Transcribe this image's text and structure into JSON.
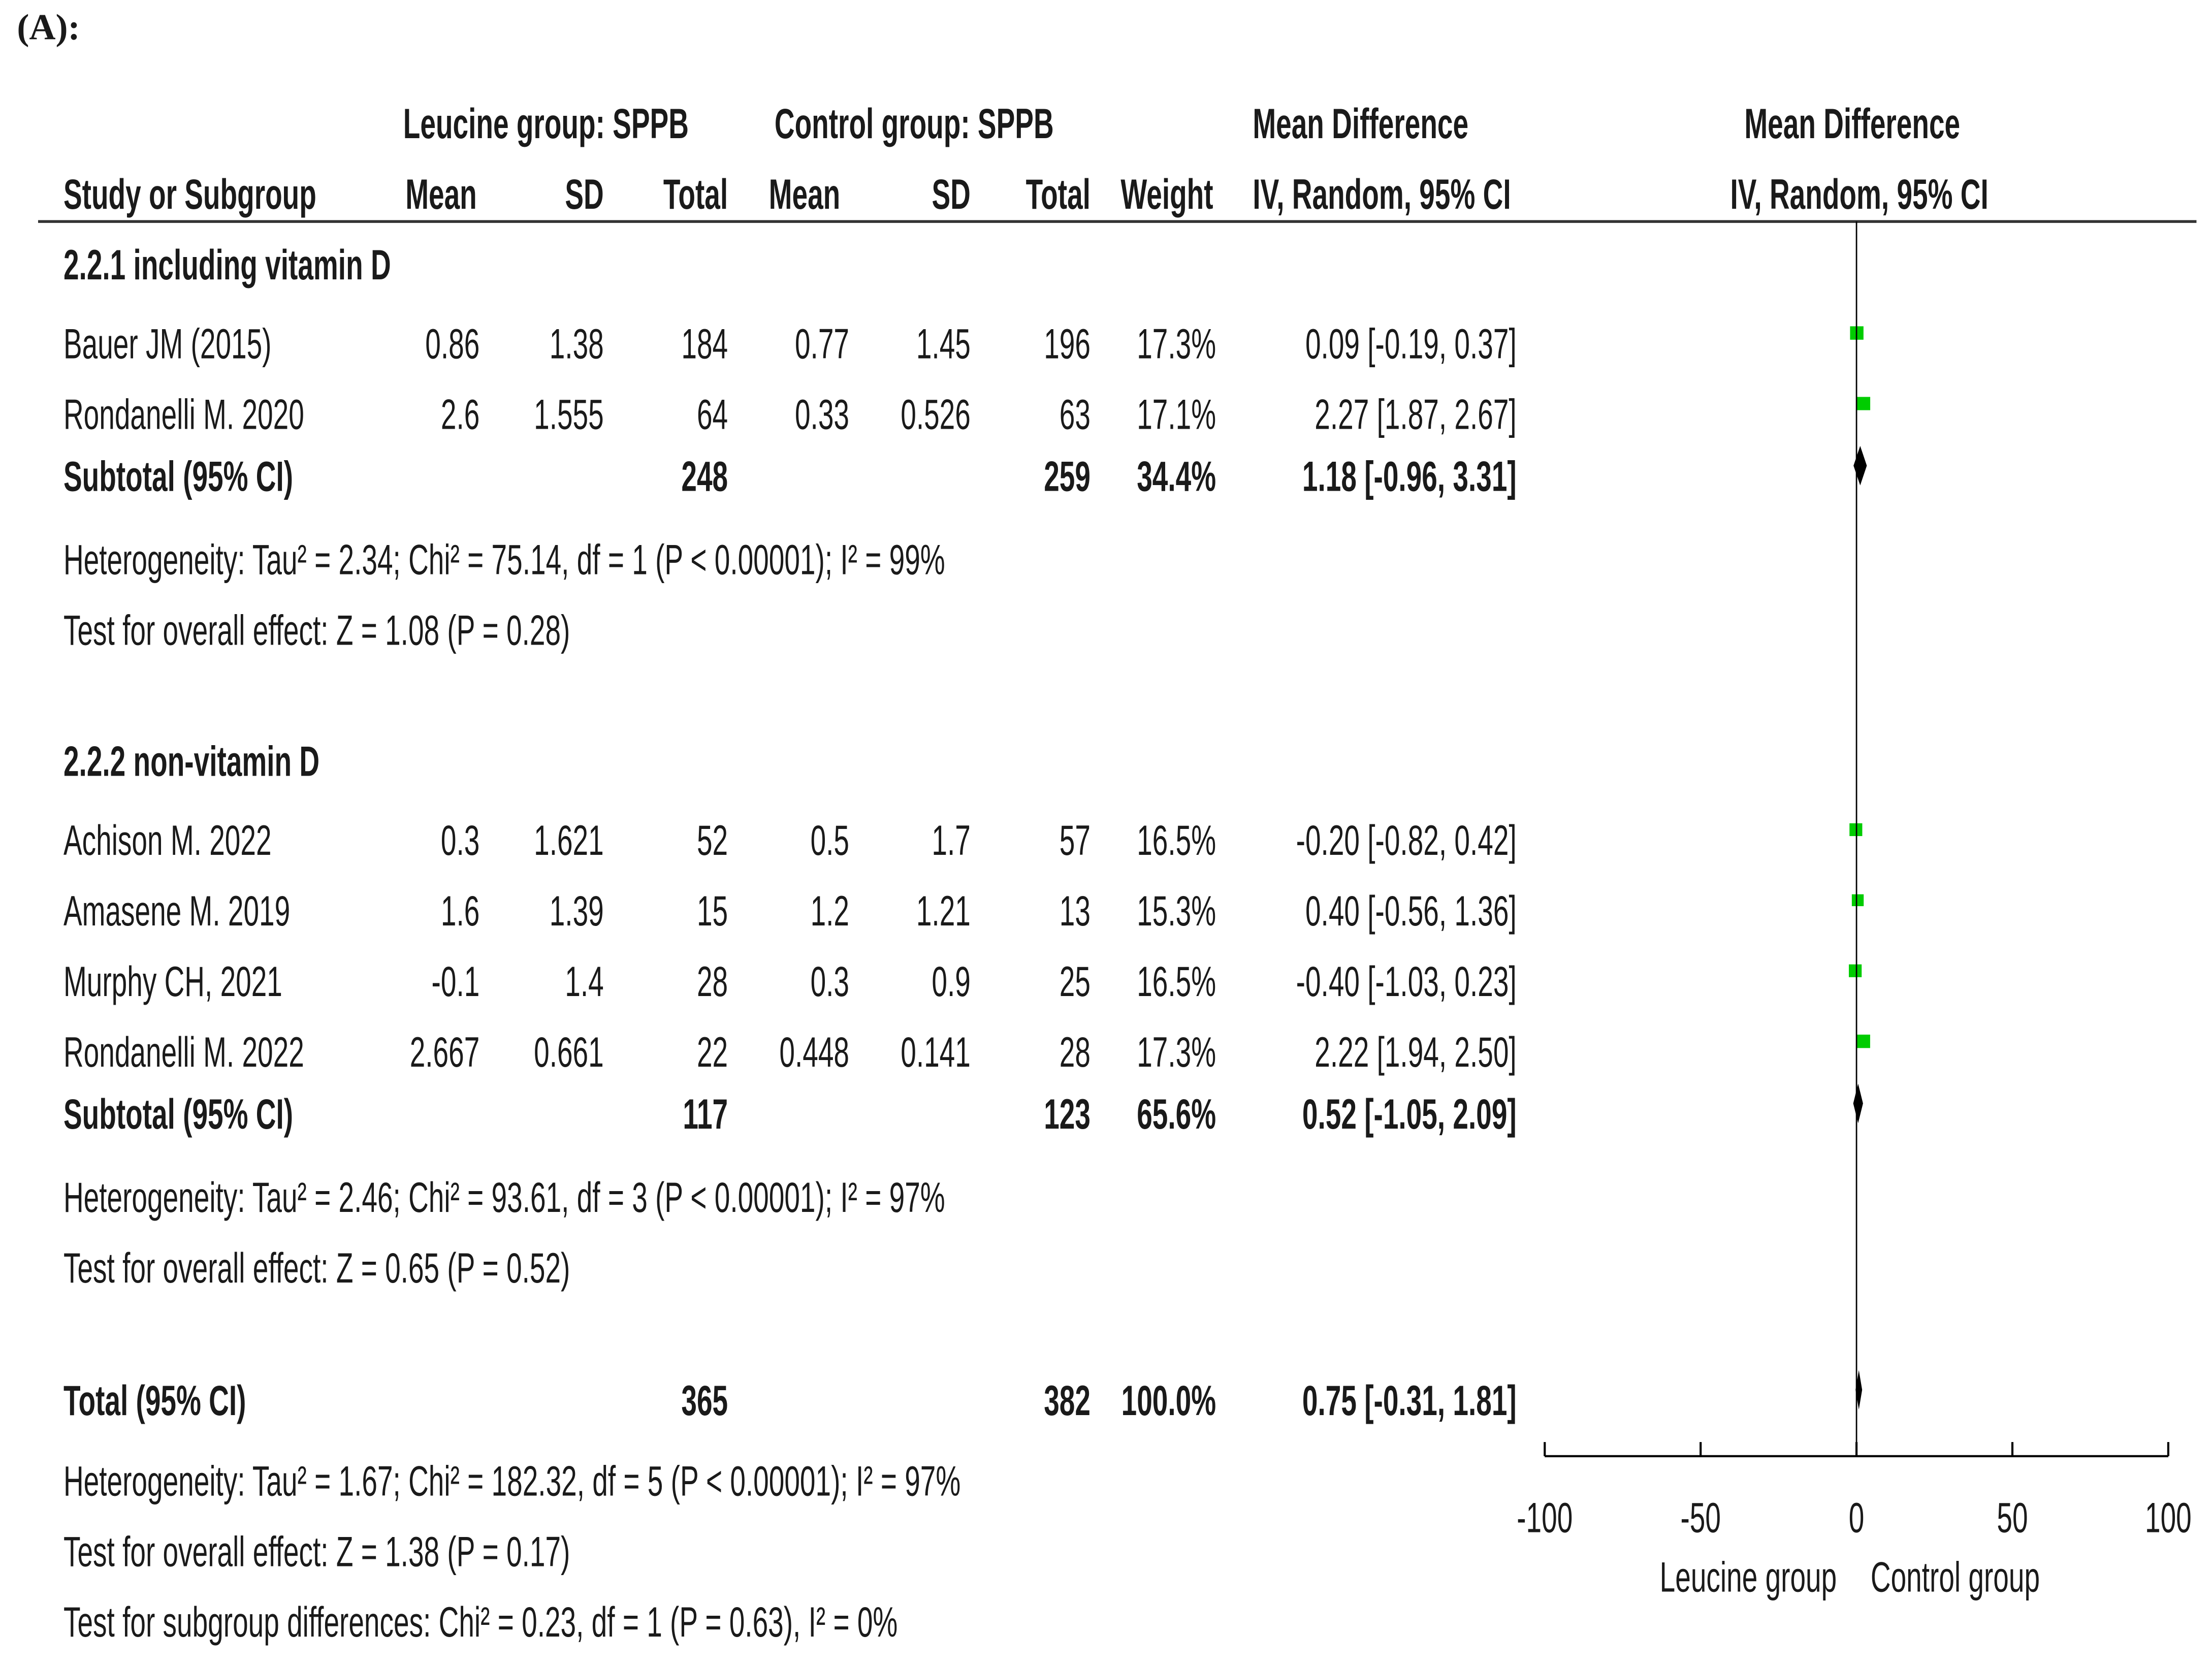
{
  "figure_label": "(A):",
  "chart_data": {
    "type": "forest",
    "header_groups": {
      "experimental": "Leucine group: SPPB",
      "control": "Control group: SPPB",
      "effect_text": "Mean Difference",
      "effect_plot": "Mean Difference"
    },
    "columns": {
      "study": "Study or Subgroup",
      "mean_e": "Mean",
      "sd_e": "SD",
      "total_e": "Total",
      "mean_c": "Mean",
      "sd_c": "SD",
      "total_c": "Total",
      "weight": "Weight",
      "ci_text": "IV, Random, 95% CI",
      "ci_plot": "IV, Random, 95% CI"
    },
    "subgroups": [
      {
        "name": "2.2.1 including vitamin D",
        "studies": [
          {
            "name": "Bauer JM (2015)",
            "mean_e": 0.86,
            "sd_e": 1.38,
            "total_e": 184,
            "mean_c": 0.77,
            "sd_c": 1.45,
            "total_c": 196,
            "weight": 17.3,
            "weight_label": "17.3%",
            "md": 0.09,
            "ci_low": -0.19,
            "ci_high": 0.37,
            "ci_label": "0.09 [-0.19, 0.37]"
          },
          {
            "name": "Rondanelli M. 2020",
            "mean_e": 2.6,
            "sd_e": 1.555,
            "total_e": 64,
            "mean_c": 0.33,
            "sd_c": 0.526,
            "total_c": 63,
            "weight": 17.1,
            "weight_label": "17.1%",
            "md": 2.27,
            "ci_low": 1.87,
            "ci_high": 2.67,
            "ci_label": "2.27 [1.87, 2.67]"
          }
        ],
        "subtotal": {
          "name": "Subtotal (95% CI)",
          "total_e": 248,
          "total_c": 259,
          "weight_label": "34.4%",
          "md": 1.18,
          "ci_low": -0.96,
          "ci_high": 3.31,
          "ci_label": "1.18 [-0.96, 3.31]"
        },
        "heterogeneity": "Heterogeneity: Tau² = 2.34; Chi² = 75.14, df = 1 (P < 0.00001); I² = 99%",
        "overall_effect": "Test for overall effect: Z = 1.08 (P = 0.28)"
      },
      {
        "name": "2.2.2 non-vitamin D",
        "studies": [
          {
            "name": "Achison M. 2022",
            "mean_e": 0.3,
            "sd_e": 1.621,
            "total_e": 52,
            "mean_c": 0.5,
            "sd_c": 1.7,
            "total_c": 57,
            "weight": 16.5,
            "weight_label": "16.5%",
            "md": -0.2,
            "ci_low": -0.82,
            "ci_high": 0.42,
            "ci_label": "-0.20 [-0.82, 0.42]"
          },
          {
            "name": "Amasene M. 2019",
            "mean_e": 1.6,
            "sd_e": 1.39,
            "total_e": 15,
            "mean_c": 1.2,
            "sd_c": 1.21,
            "total_c": 13,
            "weight": 15.3,
            "weight_label": "15.3%",
            "md": 0.4,
            "ci_low": -0.56,
            "ci_high": 1.36,
            "ci_label": "0.40 [-0.56, 1.36]"
          },
          {
            "name": "Murphy CH, 2021",
            "mean_e": -0.1,
            "sd_e": 1.4,
            "total_e": 28,
            "mean_c": 0.3,
            "sd_c": 0.9,
            "total_c": 25,
            "weight": 16.5,
            "weight_label": "16.5%",
            "md": -0.4,
            "ci_low": -1.03,
            "ci_high": 0.23,
            "ci_label": "-0.40 [-1.03, 0.23]"
          },
          {
            "name": "Rondanelli M. 2022",
            "mean_e": 2.667,
            "sd_e": 0.661,
            "total_e": 22,
            "mean_c": 0.448,
            "sd_c": 0.141,
            "total_c": 28,
            "weight": 17.3,
            "weight_label": "17.3%",
            "md": 2.22,
            "ci_low": 1.94,
            "ci_high": 2.5,
            "ci_label": "2.22 [1.94, 2.50]"
          }
        ],
        "subtotal": {
          "name": "Subtotal (95% CI)",
          "total_e": 117,
          "total_c": 123,
          "weight_label": "65.6%",
          "md": 0.52,
          "ci_low": -1.05,
          "ci_high": 2.09,
          "ci_label": "0.52 [-1.05, 2.09]"
        },
        "heterogeneity": "Heterogeneity: Tau² = 2.46; Chi² = 93.61, df = 3 (P < 0.00001); I² = 97%",
        "overall_effect": "Test for overall effect: Z = 0.65 (P = 0.52)"
      }
    ],
    "total": {
      "name": "Total (95% CI)",
      "total_e": 365,
      "total_c": 382,
      "weight_label": "100.0%",
      "md": 0.75,
      "ci_low": -0.31,
      "ci_high": 1.81,
      "ci_label": "0.75 [-0.31, 1.81]",
      "heterogeneity": "Heterogeneity: Tau² = 1.67; Chi² = 182.32, df = 5 (P < 0.00001); I² = 97%",
      "overall_effect": "Test for overall effect: Z = 1.38 (P = 0.17)",
      "subgroup_differences": "Test for subgroup differences: Chi² = 0.23, df = 1 (P = 0.63), I² = 0%"
    },
    "xlim": [
      -100,
      100
    ],
    "xticks": [
      -100,
      -50,
      0,
      50,
      100
    ],
    "favours": [
      "Leucine group",
      "Control group"
    ],
    "color": "#00cc00"
  }
}
